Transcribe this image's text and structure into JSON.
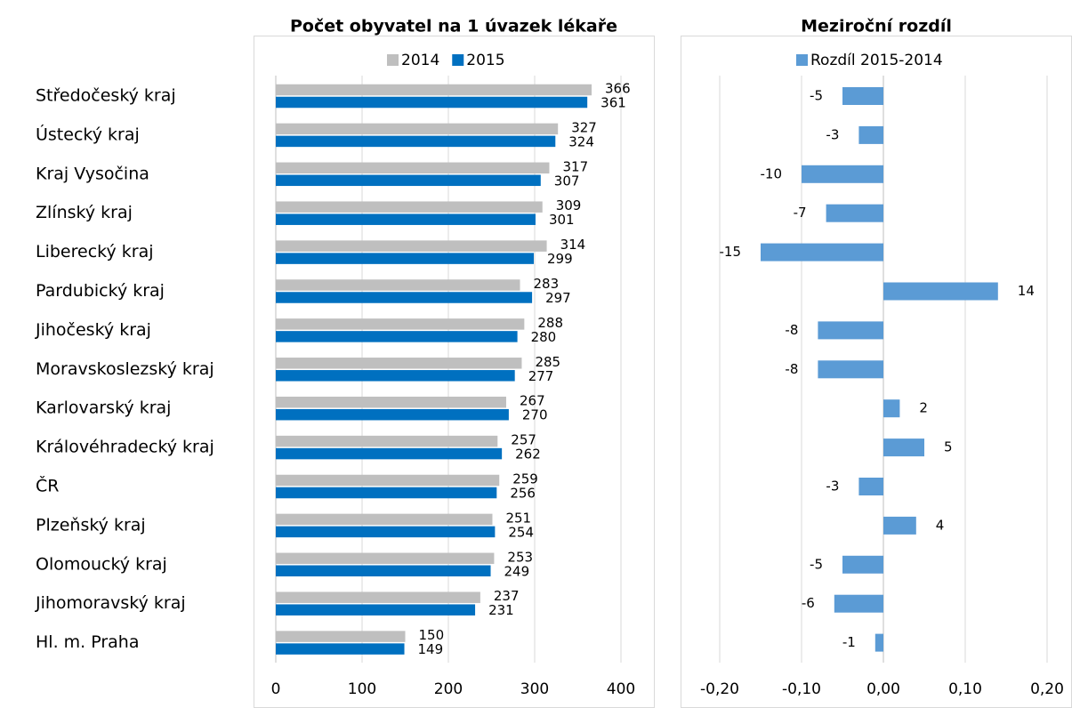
{
  "chart_data": [
    {
      "type": "hbar",
      "title": "Počet obyvatel na 1 úvazek lékaře",
      "categories": [
        "Středočeský kraj",
        "Ústecký kraj",
        "Kraj Vysočina",
        "Zlínský kraj",
        "Liberecký kraj",
        "Pardubický kraj",
        "Jihočeský kraj",
        "Moravskoslezský kraj",
        "Karlovarský kraj",
        "Královéhradecký kraj",
        "ČR",
        "Plzeňský kraj",
        "Olomoucký kraj",
        "Jihomoravský kraj",
        "Hl. m. Praha"
      ],
      "series": [
        {
          "name": "2014",
          "color": "#bfbfbf",
          "values": [
            366,
            327,
            317,
            309,
            314,
            283,
            288,
            285,
            267,
            257,
            259,
            251,
            253,
            237,
            150
          ]
        },
        {
          "name": "2015",
          "color": "#0070c0",
          "values": [
            361,
            324,
            307,
            301,
            299,
            297,
            280,
            277,
            270,
            262,
            256,
            254,
            249,
            231,
            149
          ]
        }
      ],
      "xlim": [
        0,
        400
      ],
      "xticks": [
        0,
        100,
        200,
        300,
        400
      ],
      "grid": true,
      "legend": "top"
    },
    {
      "type": "hbar",
      "title": "Meziroční rozdíl",
      "series": [
        {
          "name": "Rozdíl 2015-2014",
          "color": "#5b9bd5",
          "values": [
            -0.05,
            -0.03,
            -0.1,
            -0.07,
            -0.15,
            0.14,
            -0.08,
            -0.08,
            0.02,
            0.05,
            -0.03,
            0.04,
            -0.05,
            -0.06,
            -0.01
          ],
          "value_labels": [
            "-5",
            "-3",
            "-10",
            "-7",
            "-15",
            "14",
            "-8",
            "-8",
            "2",
            "5",
            "-3",
            "4",
            "-5",
            "-6",
            "-1"
          ]
        }
      ],
      "negative_label_color": "#ff0000",
      "xlim": [
        -0.2,
        0.2
      ],
      "xticks": [
        {
          "value": -0.2,
          "label": "-0,20"
        },
        {
          "value": -0.1,
          "label": "-0,10"
        },
        {
          "value": 0,
          "label": "0,00"
        },
        {
          "value": 0.1,
          "label": "0,10"
        },
        {
          "value": 0.2,
          "label": "0,20"
        }
      ],
      "grid": true,
      "legend": "top"
    }
  ]
}
